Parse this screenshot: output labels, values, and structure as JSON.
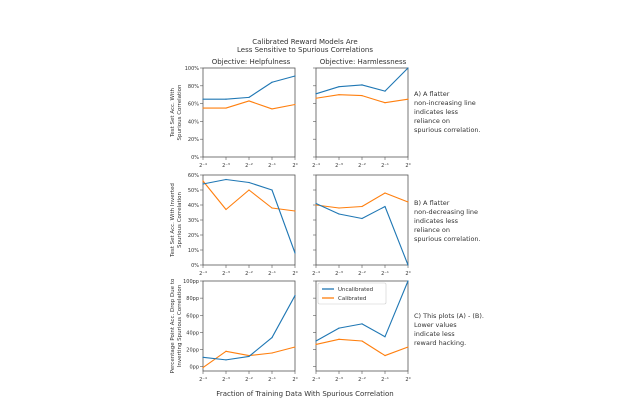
{
  "chart_data": {
    "type": "line",
    "title": [
      "Calibrated Reward Models Are",
      "Less Sensitive to Spurious Correlations"
    ],
    "xlabel": "Fraction of Training Data With Spurious Correlation",
    "x": [
      -4,
      -3,
      -2,
      -1,
      0
    ],
    "x_tick_labels": [
      "2⁻⁴",
      "2⁻³",
      "2⁻²",
      "2⁻¹",
      "2⁰"
    ],
    "column_titles": [
      "Objective: Helpfulness",
      "Objective: Harmlessness"
    ],
    "legend": {
      "placement": "center-right of bottom-right panel",
      "entries": [
        "Uncalibrated",
        "Calibrated"
      ]
    },
    "series_colors": {
      "Uncalibrated": "#1f77b4",
      "Calibrated": "#ff7f0e"
    },
    "rows": [
      {
        "ylabel": [
          "Test Set Acc. With",
          "Spurious Correlation"
        ],
        "ylim": [
          0,
          100
        ],
        "yticks": [
          0,
          20,
          40,
          60,
          80,
          100
        ],
        "ytick_labels": [
          "0%",
          "20%",
          "40%",
          "60%",
          "80%",
          "100%"
        ],
        "annotation": [
          "A) A flatter",
          "   non-increasing line",
          "   indicates less",
          "   reliance on",
          "   spurious correlation."
        ],
        "panels": [
          {
            "series": [
              {
                "name": "Uncalibrated",
                "values": [
                  65,
                  65,
                  67,
                  84,
                  91
                ]
              },
              {
                "name": "Calibrated",
                "values": [
                  55,
                  55,
                  63,
                  54,
                  59
                ]
              }
            ]
          },
          {
            "series": [
              {
                "name": "Uncalibrated",
                "values": [
                  71,
                  79,
                  81,
                  74,
                  100
                ]
              },
              {
                "name": "Calibrated",
                "values": [
                  66,
                  70,
                  69,
                  61,
                  65
                ]
              }
            ]
          }
        ]
      },
      {
        "ylabel": [
          "Test Set Acc. With Inverted",
          "Spurious Correlation"
        ],
        "ylim": [
          0,
          60
        ],
        "yticks": [
          0,
          10,
          20,
          30,
          40,
          50,
          60
        ],
        "ytick_labels": [
          "0%",
          "10%",
          "20%",
          "30%",
          "40%",
          "50%",
          "60%"
        ],
        "annotation": [
          "B) A flatter",
          "   non-decreasing line",
          "   indicates less",
          "   reliance on",
          "   spurious correlation."
        ],
        "panels": [
          {
            "series": [
              {
                "name": "Uncalibrated",
                "values": [
                  54,
                  57,
                  55,
                  50,
                  8
                ]
              },
              {
                "name": "Calibrated",
                "values": [
                  56,
                  37,
                  50,
                  38,
                  36
                ]
              }
            ]
          },
          {
            "series": [
              {
                "name": "Uncalibrated",
                "values": [
                  41,
                  34,
                  31,
                  39,
                  0
                ]
              },
              {
                "name": "Calibrated",
                "values": [
                  40,
                  38,
                  39,
                  48,
                  42
                ]
              }
            ]
          }
        ]
      },
      {
        "ylabel": [
          "Percentage Point Acc. Drop Due to",
          "Inverting Spurious Correlation"
        ],
        "ylim": [
          -5,
          100
        ],
        "yticks": [
          0,
          20,
          40,
          60,
          80,
          100
        ],
        "ytick_labels": [
          "0pp",
          "20pp",
          "40pp",
          "60pp",
          "80pp",
          "100pp"
        ],
        "annotation": [
          "C) This plots (A) - (B).",
          "   Lower values",
          "   indicate less",
          "   reward hacking."
        ],
        "panels": [
          {
            "series": [
              {
                "name": "Uncalibrated",
                "values": [
                  11,
                  8,
                  12,
                  34,
                  83
                ]
              },
              {
                "name": "Calibrated",
                "values": [
                  -1,
                  18,
                  13,
                  16,
                  23
                ]
              }
            ]
          },
          {
            "series": [
              {
                "name": "Uncalibrated",
                "values": [
                  30,
                  45,
                  50,
                  35,
                  100
                ]
              },
              {
                "name": "Calibrated",
                "values": [
                  26,
                  32,
                  30,
                  13,
                  23
                ]
              }
            ]
          }
        ]
      }
    ]
  }
}
